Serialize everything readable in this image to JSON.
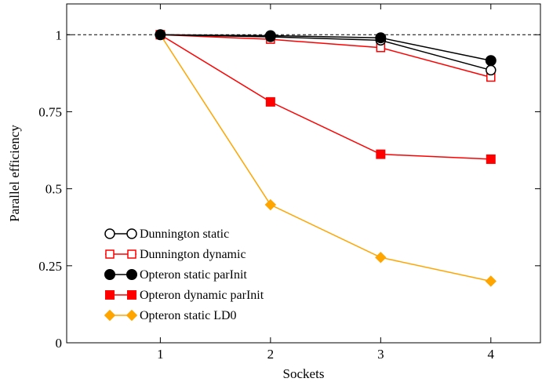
{
  "chart_data": {
    "type": "line",
    "title": "",
    "xlabel": "Sockets",
    "ylabel": "Parallel efficiency",
    "x": [
      1,
      2,
      3,
      4
    ],
    "xticks": [
      "1",
      "2",
      "3",
      "4"
    ],
    "xlim": [
      0.15,
      4.45
    ],
    "yticks": [
      "0",
      "0.25",
      "0.5",
      "0.75",
      "1"
    ],
    "ytick_values": [
      0,
      0.25,
      0.5,
      0.75,
      1
    ],
    "ylim": [
      0,
      1.1
    ],
    "reference_line": {
      "y": 1,
      "style": "dashed"
    },
    "grid": false,
    "legend_position": "bottom-left",
    "series": [
      {
        "name": "Dunnington static",
        "values": [
          1.0,
          0.993,
          0.982,
          0.885
        ],
        "color": "#000000",
        "marker": "circle-open"
      },
      {
        "name": "Dunnington dynamic",
        "values": [
          1.0,
          0.985,
          0.958,
          0.862
        ],
        "color": "#ff0000",
        "marker": "square-open"
      },
      {
        "name": "Opteron static parInit",
        "values": [
          1.0,
          0.997,
          0.99,
          0.916
        ],
        "color": "#000000",
        "marker": "circle-filled"
      },
      {
        "name": "Opteron dynamic parInit",
        "values": [
          1.0,
          0.782,
          0.612,
          0.596
        ],
        "color": "#ff0000",
        "marker": "square-filled"
      },
      {
        "name": "Opteron static LD0",
        "values": [
          1.0,
          0.448,
          0.277,
          0.2
        ],
        "color": "#ffa500",
        "marker": "diamond-filled"
      }
    ]
  }
}
